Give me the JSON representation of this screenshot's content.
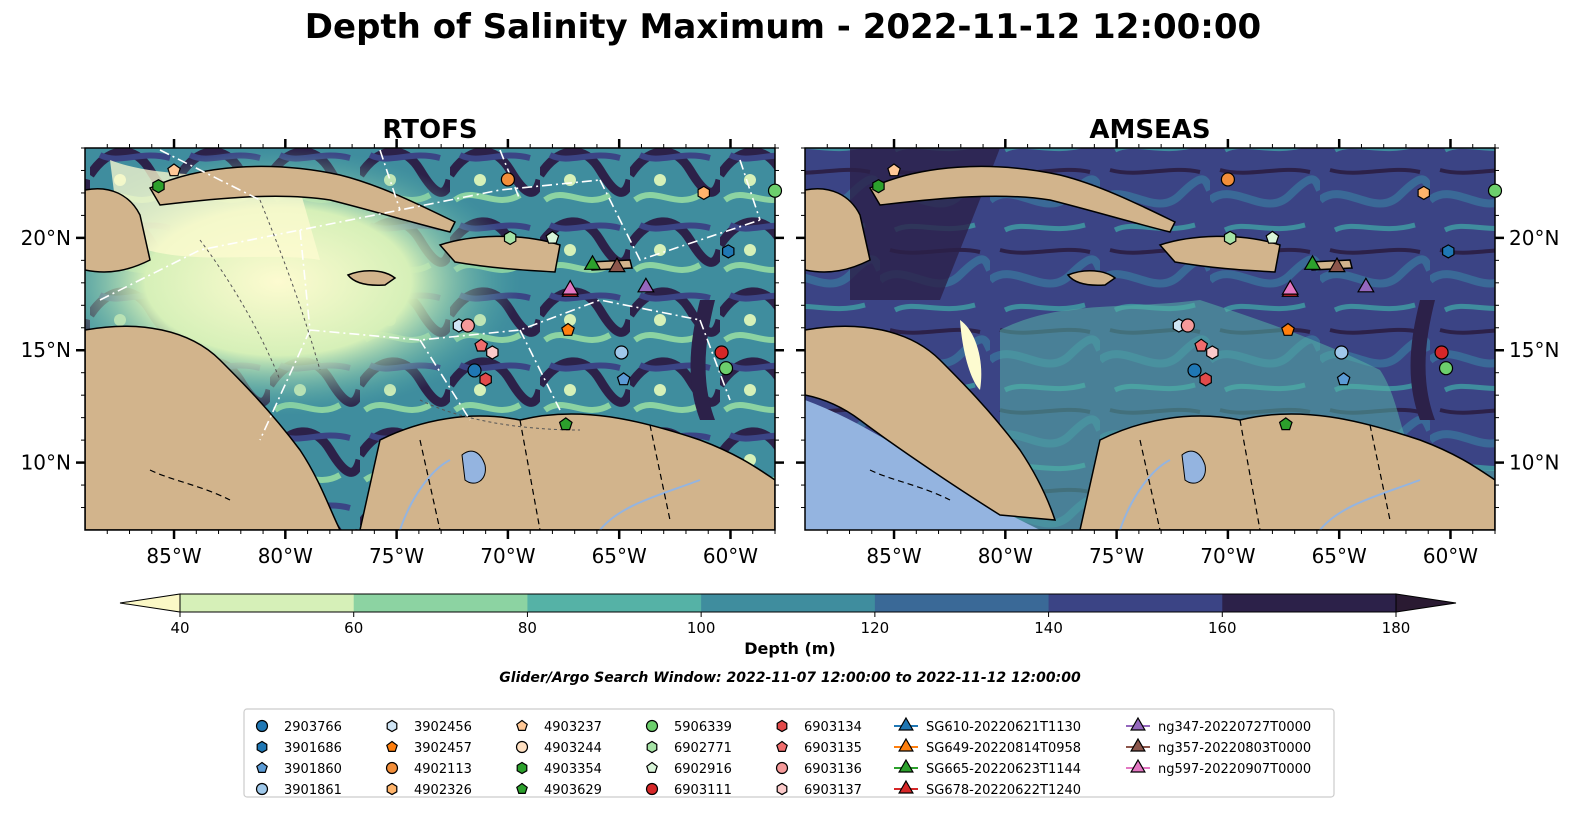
{
  "figure": {
    "title": "Depth of Salinity Maximum - 2022-11-12 12:00:00",
    "window_text": "Glider/Argo Search Window: 2022-11-07 12:00:00 to 2022-11-12 12:00:00"
  },
  "chart_data": [
    {
      "type": "map",
      "title": "RTOFS",
      "lon_range": [
        -89,
        -58
      ],
      "lat_range": [
        7,
        24
      ],
      "x_ticks": [
        "85°W",
        "80°W",
        "75°W",
        "70°W",
        "65°W",
        "60°W"
      ],
      "y_ticks": [
        "10°N",
        "15°N",
        "20°N"
      ],
      "background_class": "mixed"
    },
    {
      "type": "map",
      "title": "AMSEAS",
      "lon_range": [
        -89,
        -58
      ],
      "lat_range": [
        7,
        24
      ],
      "x_ticks": [
        "85°W",
        "80°W",
        "75°W",
        "70°W",
        "65°W",
        "60°W"
      ],
      "y_ticks": [
        "10°N",
        "15°N",
        "20°N"
      ],
      "background_class": "deep"
    }
  ],
  "colorbar": {
    "label": "Depth (m)",
    "ticks": [
      "40",
      "60",
      "80",
      "100",
      "120",
      "140",
      "160",
      "180"
    ],
    "colors": [
      "#d6f0b8",
      "#8cd3a2",
      "#55b2a6",
      "#3f8d9e",
      "#3a6997",
      "#3b4485",
      "#2c2149"
    ],
    "extend_low": "#fbf8c6",
    "extend_high": "#2a1a32"
  },
  "colors": {
    "land": "#d2b48c",
    "lake": "#94b4e0",
    "white_water": "#fdfbd0"
  },
  "legend": {
    "items": [
      {
        "label": "2903766",
        "marker": "circle",
        "color": "#1f77b4"
      },
      {
        "label": "3901686",
        "marker": "hexagon",
        "color": "#1f77b4"
      },
      {
        "label": "3901860",
        "marker": "pentagon",
        "color": "#5b9bd5"
      },
      {
        "label": "3901861",
        "marker": "circle",
        "color": "#9fc8ea"
      },
      {
        "label": "3902456",
        "marker": "hexagon",
        "color": "#cfe5f5"
      },
      {
        "label": "3902457",
        "marker": "pentagon",
        "color": "#ff7f0e"
      },
      {
        "label": "4902113",
        "marker": "circle",
        "color": "#f28e3a"
      },
      {
        "label": "4902326",
        "marker": "hexagon",
        "color": "#ffb46b"
      },
      {
        "label": "4903237",
        "marker": "pentagon",
        "color": "#ffc896"
      },
      {
        "label": "4903244",
        "marker": "circle",
        "color": "#ffe0c2"
      },
      {
        "label": "4903354",
        "marker": "hexagon",
        "color": "#2ca02c"
      },
      {
        "label": "4903629",
        "marker": "pentagon",
        "color": "#2ca02c"
      },
      {
        "label": "5906339",
        "marker": "circle",
        "color": "#6ccf6c"
      },
      {
        "label": "6902771",
        "marker": "hexagon",
        "color": "#a6e3a6"
      },
      {
        "label": "6902916",
        "marker": "pentagon",
        "color": "#d9f5d9"
      },
      {
        "label": "6903111",
        "marker": "circle",
        "color": "#d62728"
      },
      {
        "label": "6903134",
        "marker": "hexagon",
        "color": "#e24a4a"
      },
      {
        "label": "6903135",
        "marker": "pentagon",
        "color": "#f06d6d"
      },
      {
        "label": "6903136",
        "marker": "circle",
        "color": "#f59a9a"
      },
      {
        "label": "6903137",
        "marker": "hexagon",
        "color": "#fbcaca"
      },
      {
        "label": "SG610-20220621T1130",
        "marker": "triangle",
        "color": "#1f77b4"
      },
      {
        "label": "SG649-20220814T0958",
        "marker": "triangle",
        "color": "#ff7f0e"
      },
      {
        "label": "SG665-20220623T1144",
        "marker": "triangle",
        "color": "#2ca02c"
      },
      {
        "label": "SG678-20220622T1240",
        "marker": "triangle",
        "color": "#d62728"
      },
      {
        "label": "ng347-20220727T0000",
        "marker": "triangle",
        "color": "#9467bd"
      },
      {
        "label": "ng357-20220803T0000",
        "marker": "triangle",
        "color": "#8c564b"
      },
      {
        "label": "ng597-20220907T0000",
        "marker": "triangle",
        "color": "#e377c2"
      }
    ]
  },
  "observations": [
    {
      "id": "4903354",
      "lon": -85.7,
      "lat": 22.3
    },
    {
      "id": "4903237",
      "lon": -85.0,
      "lat": 23.0
    },
    {
      "id": "4902113",
      "lon": -70.0,
      "lat": 22.6
    },
    {
      "id": "5906339",
      "lon": -58.0,
      "lat": 22.1
    },
    {
      "id": "4902326",
      "lon": -61.2,
      "lat": 22.0
    },
    {
      "id": "6902771",
      "lon": -69.9,
      "lat": 20.0
    },
    {
      "id": "6902916",
      "lon": -68.0,
      "lat": 20.0
    },
    {
      "id": "3901686",
      "lon": -60.1,
      "lat": 19.4
    },
    {
      "id": "SG665-20220623T1144",
      "lon": -66.2,
      "lat": 18.8
    },
    {
      "id": "ng357-20220803T0000",
      "lon": -65.1,
      "lat": 18.7
    },
    {
      "id": "ng347-20220727T0000",
      "lon": -63.8,
      "lat": 17.8
    },
    {
      "id": "SG678-20220622T1240",
      "lon": -67.2,
      "lat": 17.6
    },
    {
      "id": "ng597-20220907T0000",
      "lon": -67.2,
      "lat": 17.7
    },
    {
      "id": "3902456",
      "lon": -72.2,
      "lat": 16.1
    },
    {
      "id": "6903136",
      "lon": -71.8,
      "lat": 16.1
    },
    {
      "id": "3902457",
      "lon": -67.3,
      "lat": 15.9
    },
    {
      "id": "6903135",
      "lon": -71.2,
      "lat": 15.2
    },
    {
      "id": "6903137",
      "lon": -70.7,
      "lat": 14.9
    },
    {
      "id": "3901861",
      "lon": -64.9,
      "lat": 14.9
    },
    {
      "id": "6903111",
      "lon": -60.4,
      "lat": 14.9
    },
    {
      "id": "2903766",
      "lon": -71.5,
      "lat": 14.1
    },
    {
      "id": "5906339",
      "lon": -60.2,
      "lat": 14.2
    },
    {
      "id": "6903134",
      "lon": -71.0,
      "lat": 13.7
    },
    {
      "id": "3901860",
      "lon": -64.8,
      "lat": 13.7
    },
    {
      "id": "4903629",
      "lon": -67.4,
      "lat": 11.7
    }
  ]
}
